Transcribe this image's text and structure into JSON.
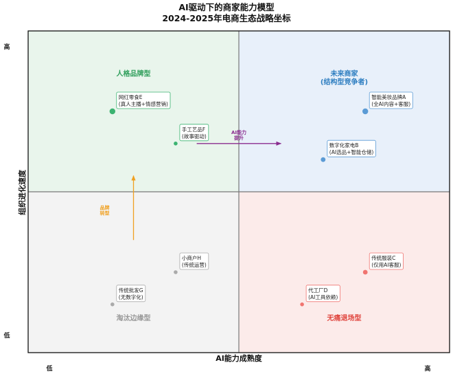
{
  "chart_data": {
    "type": "scatter",
    "title": "AI驱动下的商家能力模型",
    "subtitle": "2024-2025年电商生态战略坐标",
    "xlabel": "AI能力成熟度",
    "ylabel": "组织进化速度",
    "xlim": [
      0,
      10
    ],
    "ylim": [
      0,
      10
    ],
    "x_ticks": {
      "low": "低",
      "high": "高"
    },
    "y_ticks": {
      "low": "低",
      "high": "高"
    },
    "grid": false,
    "quadrants": [
      {
        "name": "人格品牌型",
        "color": "#2e9e5a",
        "fill": "#e9f5ec",
        "region": "top-left"
      },
      {
        "name": "未来商家\n(结构型竞争者)",
        "color": "#2f7fc1",
        "fill": "#e8f0fa",
        "region": "top-right"
      },
      {
        "name": "淘汰边缘型",
        "color": "#999999",
        "fill": "#f3f3f3",
        "region": "bottom-left"
      },
      {
        "name": "无痛退场型",
        "color": "#e0463f",
        "fill": "#fcebea",
        "region": "bottom-right"
      }
    ],
    "points": [
      {
        "label": "网红零食E\n(真人主播+情感营销)",
        "x": 2.0,
        "y": 7.5,
        "color": "#3cb371",
        "size": "large"
      },
      {
        "label": "手工艺品F\n(故事驱动)",
        "x": 3.5,
        "y": 6.5,
        "color": "#3cb371",
        "size": "small"
      },
      {
        "label": "智能美妆品牌A\n(全AI内容+客服)",
        "x": 8.0,
        "y": 7.5,
        "color": "#5b9bd5",
        "size": "large"
      },
      {
        "label": "数字化家电B\n(AI选品+智能仓储)",
        "x": 7.0,
        "y": 6.0,
        "color": "#5b9bd5",
        "size": "medium"
      },
      {
        "label": "传统服装C\n(仅用AI客服)",
        "x": 8.0,
        "y": 2.5,
        "color": "#f07470",
        "size": "medium"
      },
      {
        "label": "代工厂D\n(AI工具依赖)",
        "x": 6.5,
        "y": 1.5,
        "color": "#f07470",
        "size": "small"
      },
      {
        "label": "小商户H\n(传统运营)",
        "x": 3.5,
        "y": 2.5,
        "color": "#aaaaaa",
        "size": "small"
      },
      {
        "label": "传统批发G\n(无数字化)",
        "x": 2.0,
        "y": 1.5,
        "color": "#aaaaaa",
        "size": "small"
      }
    ],
    "arrows": [
      {
        "label": "AI能力\n提升",
        "from": [
          4.0,
          6.5
        ],
        "to": [
          6.0,
          6.5
        ],
        "color": "#8a2c8f"
      },
      {
        "label": "品牌\n转型",
        "from": [
          2.5,
          3.5
        ],
        "to": [
          2.5,
          5.5
        ],
        "color": "#f0a020"
      }
    ]
  }
}
